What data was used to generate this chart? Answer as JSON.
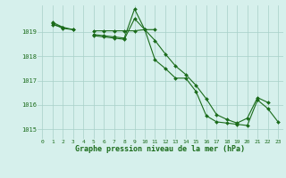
{
  "x": [
    0,
    1,
    2,
    3,
    4,
    5,
    6,
    7,
    8,
    9,
    10,
    11,
    12,
    13,
    14,
    15,
    16,
    17,
    18,
    19,
    20,
    21,
    22,
    23
  ],
  "series1": [
    null,
    1019.3,
    1019.2,
    1019.1,
    null,
    1018.85,
    1018.8,
    1018.75,
    1018.7,
    1019.55,
    1019.1,
    1017.85,
    1017.5,
    1017.1,
    1017.1,
    1016.55,
    1015.55,
    1015.3,
    1015.25,
    1015.2,
    1015.15,
    1016.2,
    1015.85,
    1015.3
  ],
  "series2": [
    null,
    1019.4,
    1019.2,
    null,
    null,
    1019.05,
    1019.05,
    1019.05,
    1019.05,
    1019.05,
    1019.1,
    1019.1,
    null,
    null,
    null,
    null,
    null,
    null,
    null,
    null,
    null,
    null,
    null,
    null
  ],
  "series3": [
    null,
    1019.35,
    1019.15,
    1019.1,
    null,
    1018.9,
    1018.85,
    1018.8,
    1018.75,
    1019.95,
    1019.1,
    1018.65,
    1018.1,
    1017.6,
    1017.25,
    1016.8,
    1016.25,
    1015.6,
    1015.4,
    1015.25,
    1015.45,
    1016.3,
    1016.1,
    null
  ],
  "line_color": "#1a6b1a",
  "bg_color": "#d6f0ec",
  "grid_color": "#a8cfc8",
  "text_color": "#1a6b1a",
  "xlabel": "Graphe pression niveau de la mer (hPa)",
  "ylabel_values": [
    1015,
    1016,
    1017,
    1018,
    1019
  ],
  "ylim": [
    1014.6,
    1020.1
  ],
  "xlim": [
    -0.5,
    23.5
  ]
}
